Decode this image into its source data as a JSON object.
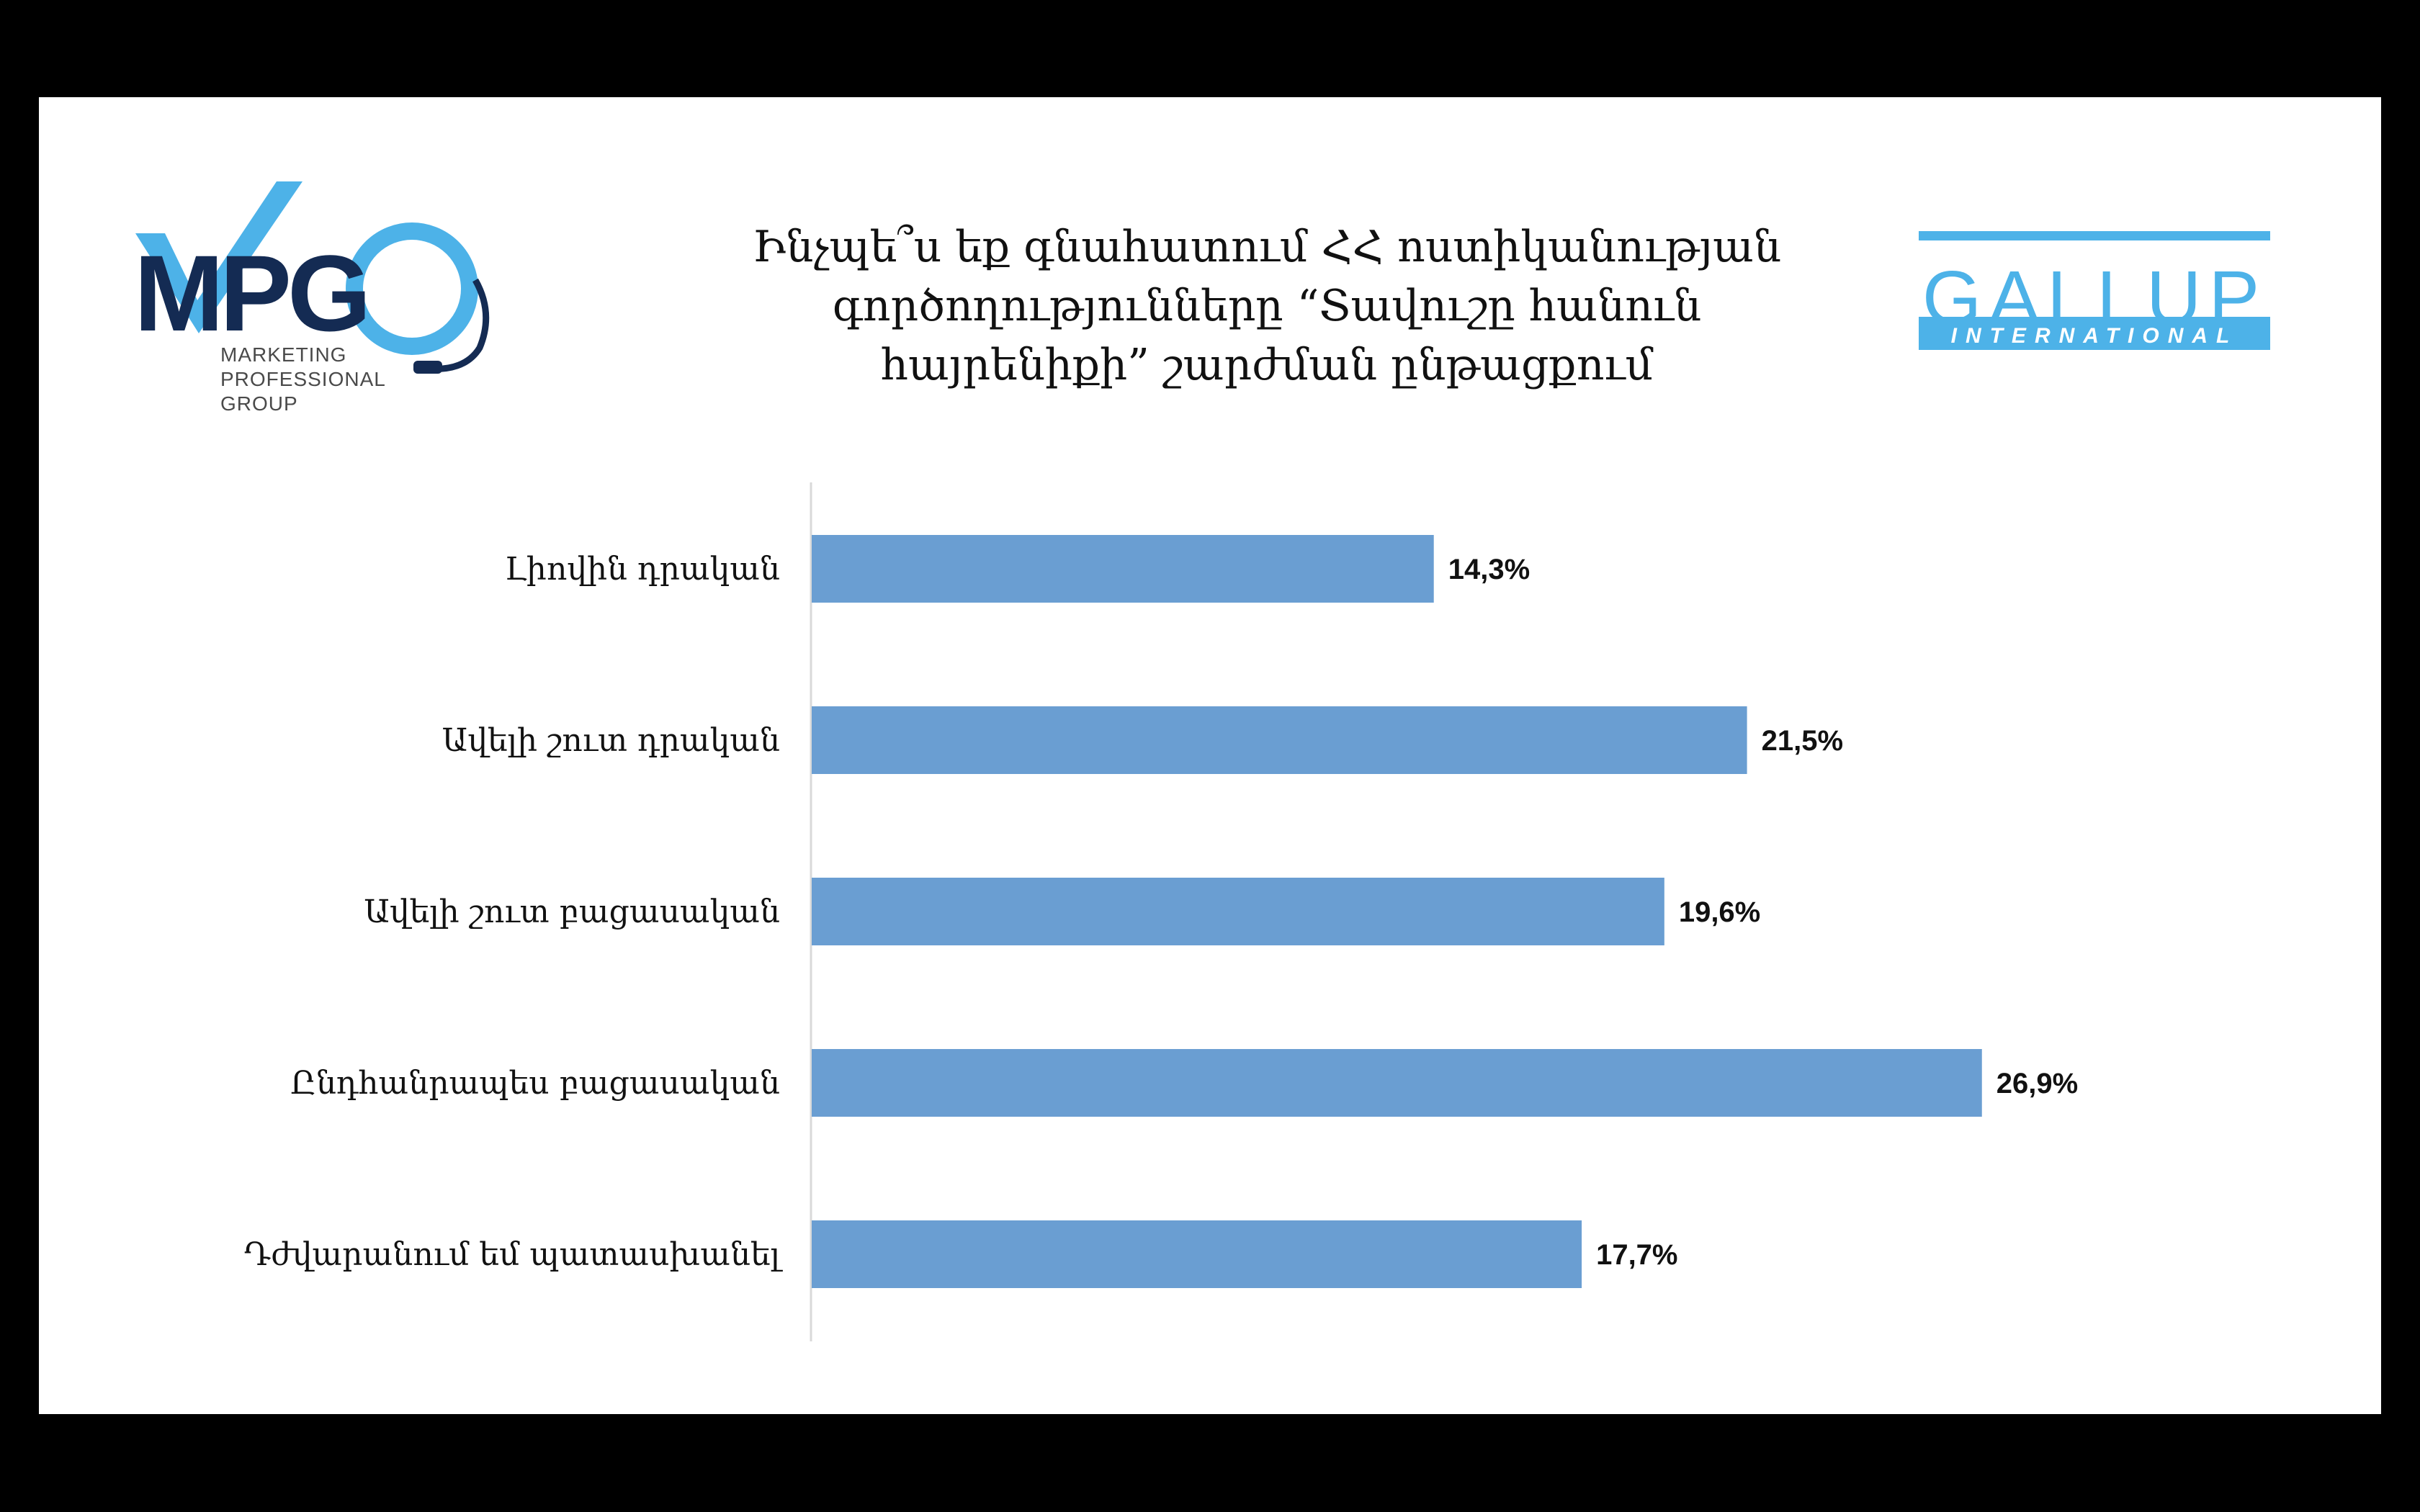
{
  "logos": {
    "mpg": {
      "mark": "MPG",
      "lines": [
        "MARKETING",
        "PROFESSIONAL",
        "GROUP"
      ],
      "colors": {
        "navy": "#142B53",
        "blue": "#4DB2E8"
      }
    },
    "gallup": {
      "name": "GALLUP",
      "sub": "INTERNATIONAL",
      "color": "#4DB2E8"
    }
  },
  "chart_data": {
    "type": "bar",
    "orientation": "horizontal",
    "title_lines": [
      "Ինչպե՞ս եք գնահատում ՀՀ ոստիկանության",
      "գործողությունները “Տավուշը հանուն",
      "հայրենիքի” շարժման ընթացքում"
    ],
    "categories": [
      "Լիովին դրական",
      "Ավելի շուտ դրական",
      "Ավելի շուտ բացասական",
      "Ընդհանրապես բացասական",
      "Դժվարանում եմ պատասխանել"
    ],
    "values": [
      14.3,
      21.5,
      19.6,
      26.9,
      17.7
    ],
    "value_labels": [
      "14,3%",
      "21,5%",
      "19,6%",
      "26,9%",
      "17,7%"
    ],
    "xlim": [
      0,
      40
    ],
    "grid": false,
    "legend": "none",
    "bar_color": "#6A9ED2",
    "axis_color": "#D9D9D9"
  }
}
